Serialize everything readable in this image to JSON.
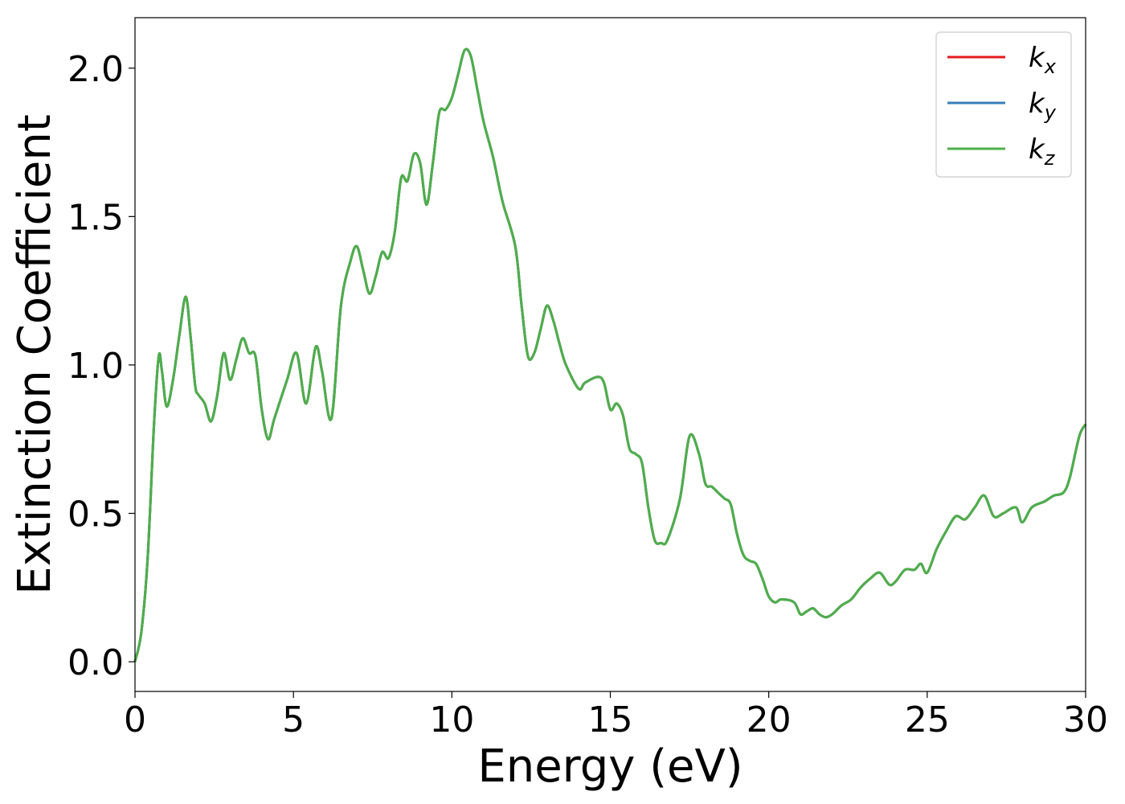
{
  "chart_data": {
    "type": "line",
    "title": "",
    "xlabel": "Energy (eV)",
    "ylabel": "Extinction Coefficient",
    "xlim": [
      0,
      30
    ],
    "ylim": [
      -0.1,
      2.17
    ],
    "xticks": [
      0,
      5,
      10,
      15,
      20,
      25,
      30
    ],
    "xtick_labels": [
      "0",
      "5",
      "10",
      "15",
      "20",
      "25",
      "30"
    ],
    "yticks": [
      0.0,
      0.5,
      1.0,
      1.5,
      2.0
    ],
    "ytick_labels": [
      "0.0",
      "0.5",
      "1.0",
      "1.5",
      "2.0"
    ],
    "grid": false,
    "legend_position": "top-right",
    "x": [
      0.0,
      0.2,
      0.4,
      0.6,
      0.75,
      0.85,
      1.0,
      1.2,
      1.4,
      1.6,
      1.75,
      1.9,
      2.0,
      2.2,
      2.4,
      2.6,
      2.8,
      3.0,
      3.2,
      3.4,
      3.6,
      3.8,
      4.0,
      4.2,
      4.4,
      4.8,
      5.1,
      5.4,
      5.7,
      5.9,
      6.2,
      6.5,
      6.8,
      7.0,
      7.2,
      7.4,
      7.6,
      7.8,
      8.0,
      8.2,
      8.4,
      8.6,
      8.8,
      9.0,
      9.2,
      9.4,
      9.6,
      9.8,
      10.0,
      10.2,
      10.4,
      10.6,
      10.8,
      11.0,
      11.3,
      11.6,
      12.0,
      12.2,
      12.4,
      12.6,
      12.8,
      13.0,
      13.2,
      13.4,
      13.6,
      14.0,
      14.2,
      14.6,
      14.8,
      15.0,
      15.2,
      15.4,
      15.6,
      15.8,
      16.0,
      16.2,
      16.4,
      16.6,
      16.8,
      17.2,
      17.5,
      17.8,
      18.0,
      18.2,
      18.4,
      18.6,
      18.8,
      19.0,
      19.2,
      19.4,
      19.6,
      19.8,
      20.0,
      20.2,
      20.4,
      20.8,
      21.0,
      21.2,
      21.4,
      21.6,
      21.8,
      22.0,
      22.3,
      22.6,
      22.9,
      23.2,
      23.5,
      23.8,
      24.0,
      24.3,
      24.6,
      24.8,
      25.0,
      25.3,
      25.6,
      25.9,
      26.2,
      26.5,
      26.8,
      27.1,
      27.4,
      27.8,
      28.0,
      28.3,
      28.7,
      29.0,
      29.3,
      29.5,
      29.8,
      30.0
    ],
    "series": [
      {
        "name": "k_x",
        "label_main": "k",
        "label_sub": "x",
        "color": "#e41a1c",
        "y": [
          0.0,
          0.1,
          0.35,
          0.8,
          1.03,
          0.98,
          0.86,
          0.95,
          1.1,
          1.23,
          1.1,
          0.93,
          0.9,
          0.87,
          0.81,
          0.9,
          1.04,
          0.95,
          1.02,
          1.09,
          1.04,
          1.03,
          0.85,
          0.75,
          0.82,
          0.95,
          1.04,
          0.87,
          1.06,
          0.98,
          0.82,
          1.2,
          1.35,
          1.4,
          1.32,
          1.24,
          1.3,
          1.38,
          1.36,
          1.45,
          1.63,
          1.62,
          1.71,
          1.68,
          1.54,
          1.68,
          1.85,
          1.86,
          1.9,
          1.98,
          2.06,
          2.04,
          1.93,
          1.82,
          1.7,
          1.55,
          1.4,
          1.2,
          1.03,
          1.04,
          1.12,
          1.2,
          1.15,
          1.07,
          1.0,
          0.92,
          0.94,
          0.96,
          0.94,
          0.85,
          0.87,
          0.83,
          0.72,
          0.7,
          0.67,
          0.52,
          0.41,
          0.4,
          0.41,
          0.55,
          0.76,
          0.7,
          0.6,
          0.59,
          0.57,
          0.55,
          0.53,
          0.43,
          0.36,
          0.34,
          0.33,
          0.28,
          0.22,
          0.2,
          0.21,
          0.2,
          0.16,
          0.17,
          0.18,
          0.16,
          0.15,
          0.16,
          0.19,
          0.21,
          0.25,
          0.28,
          0.3,
          0.26,
          0.27,
          0.31,
          0.31,
          0.33,
          0.3,
          0.38,
          0.44,
          0.49,
          0.48,
          0.52,
          0.56,
          0.49,
          0.5,
          0.52,
          0.47,
          0.52,
          0.54,
          0.56,
          0.57,
          0.62,
          0.76,
          0.8
        ]
      },
      {
        "name": "k_y",
        "label_main": "k",
        "label_sub": "y",
        "color": "#377eb8",
        "y": [
          0.0,
          0.1,
          0.35,
          0.8,
          1.03,
          0.98,
          0.86,
          0.95,
          1.1,
          1.23,
          1.1,
          0.93,
          0.9,
          0.87,
          0.81,
          0.9,
          1.04,
          0.95,
          1.02,
          1.09,
          1.04,
          1.03,
          0.85,
          0.75,
          0.82,
          0.95,
          1.04,
          0.87,
          1.06,
          0.98,
          0.82,
          1.2,
          1.35,
          1.4,
          1.32,
          1.24,
          1.3,
          1.38,
          1.36,
          1.45,
          1.63,
          1.62,
          1.71,
          1.68,
          1.54,
          1.68,
          1.85,
          1.86,
          1.9,
          1.98,
          2.06,
          2.04,
          1.93,
          1.82,
          1.7,
          1.55,
          1.4,
          1.2,
          1.03,
          1.04,
          1.12,
          1.2,
          1.15,
          1.07,
          1.0,
          0.92,
          0.94,
          0.96,
          0.94,
          0.85,
          0.87,
          0.83,
          0.72,
          0.7,
          0.67,
          0.52,
          0.41,
          0.4,
          0.41,
          0.55,
          0.76,
          0.7,
          0.6,
          0.59,
          0.57,
          0.55,
          0.53,
          0.43,
          0.36,
          0.34,
          0.33,
          0.28,
          0.22,
          0.2,
          0.21,
          0.2,
          0.16,
          0.17,
          0.18,
          0.16,
          0.15,
          0.16,
          0.19,
          0.21,
          0.25,
          0.28,
          0.3,
          0.26,
          0.27,
          0.31,
          0.31,
          0.33,
          0.3,
          0.38,
          0.44,
          0.49,
          0.48,
          0.52,
          0.56,
          0.49,
          0.5,
          0.52,
          0.47,
          0.52,
          0.54,
          0.56,
          0.57,
          0.62,
          0.76,
          0.8
        ]
      },
      {
        "name": "k_z",
        "label_main": "k",
        "label_sub": "z",
        "color": "#4daf4a",
        "y": [
          0.0,
          0.1,
          0.35,
          0.8,
          1.03,
          0.98,
          0.86,
          0.95,
          1.1,
          1.23,
          1.1,
          0.93,
          0.9,
          0.87,
          0.81,
          0.9,
          1.04,
          0.95,
          1.02,
          1.09,
          1.04,
          1.03,
          0.85,
          0.75,
          0.82,
          0.95,
          1.04,
          0.87,
          1.06,
          0.98,
          0.82,
          1.2,
          1.35,
          1.4,
          1.32,
          1.24,
          1.3,
          1.38,
          1.36,
          1.45,
          1.63,
          1.62,
          1.71,
          1.68,
          1.54,
          1.68,
          1.85,
          1.86,
          1.9,
          1.98,
          2.06,
          2.04,
          1.93,
          1.82,
          1.7,
          1.55,
          1.4,
          1.2,
          1.03,
          1.04,
          1.12,
          1.2,
          1.15,
          1.07,
          1.0,
          0.92,
          0.94,
          0.96,
          0.94,
          0.85,
          0.87,
          0.83,
          0.72,
          0.7,
          0.67,
          0.52,
          0.41,
          0.4,
          0.41,
          0.55,
          0.76,
          0.7,
          0.6,
          0.59,
          0.57,
          0.55,
          0.53,
          0.43,
          0.36,
          0.34,
          0.33,
          0.28,
          0.22,
          0.2,
          0.21,
          0.2,
          0.16,
          0.17,
          0.18,
          0.16,
          0.15,
          0.16,
          0.19,
          0.21,
          0.25,
          0.28,
          0.3,
          0.26,
          0.27,
          0.31,
          0.31,
          0.33,
          0.3,
          0.38,
          0.44,
          0.49,
          0.48,
          0.52,
          0.56,
          0.49,
          0.5,
          0.52,
          0.47,
          0.52,
          0.54,
          0.56,
          0.57,
          0.62,
          0.76,
          0.8
        ]
      }
    ]
  }
}
